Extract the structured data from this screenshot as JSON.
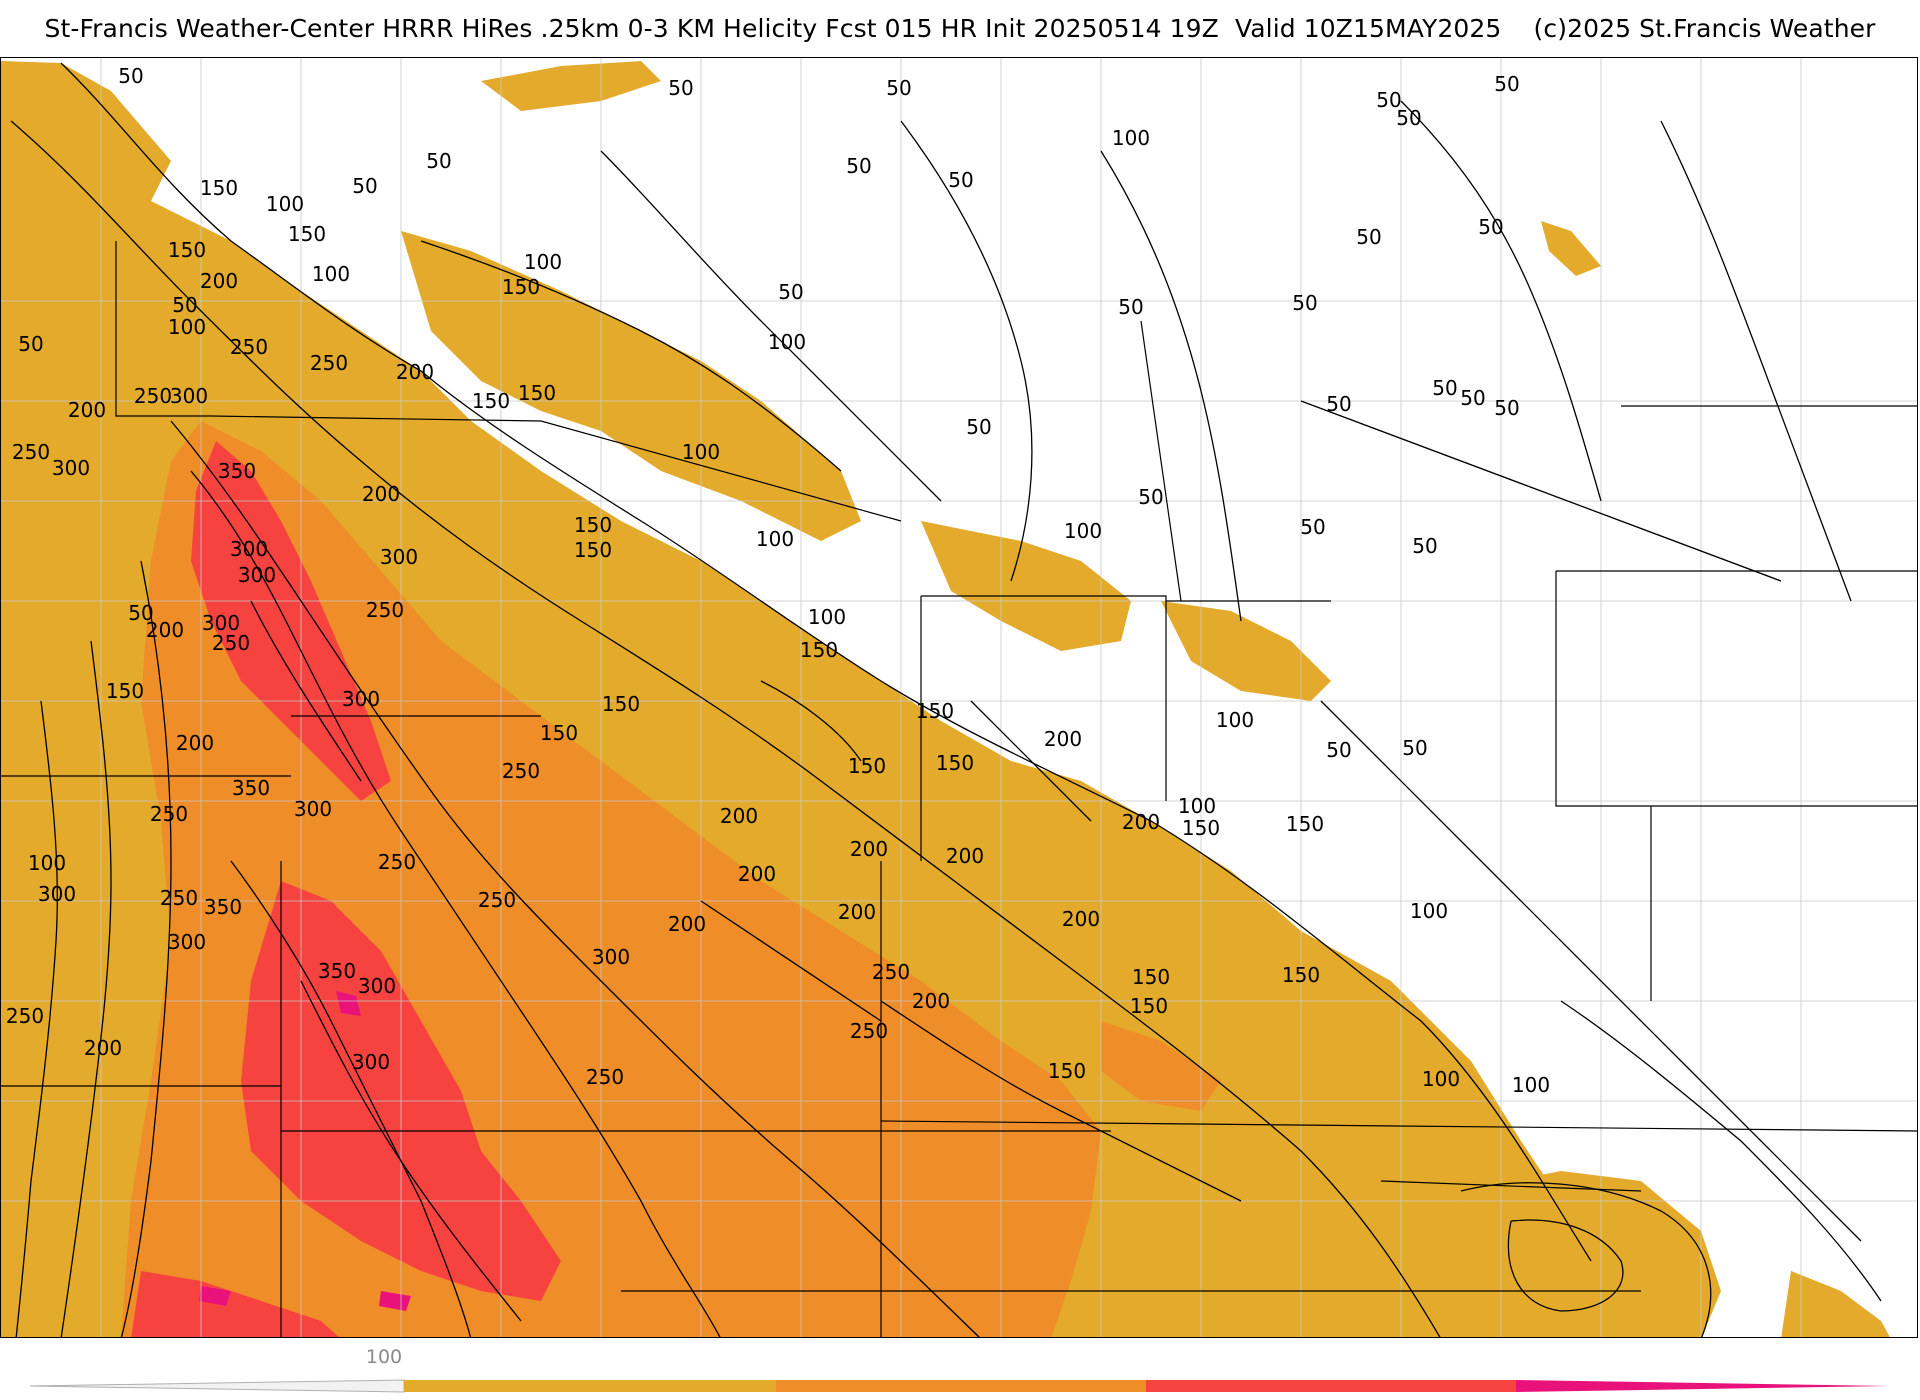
{
  "header": {
    "title": "St-Francis Weather-Center HRRR HiRes .25km 0-3 KM Helicity Fcst 015 HR Init 20250514 19Z  Valid 10Z15MAY2025    (c)2025 St.Francis Weather"
  },
  "colors": {
    "band_100_150": "#e3aa2b",
    "band_150_250": "#ef8d28",
    "band_250_350": "#f64340",
    "band_350_plus": "#e8127a",
    "contour": "#000000",
    "county_line": "#c8c8c8"
  },
  "legend": {
    "tick_label": "100",
    "segments": [
      {
        "color": "#e3aa2b"
      },
      {
        "color": "#ef8d28"
      },
      {
        "color": "#f64340"
      },
      {
        "color": "#e8127a"
      }
    ]
  },
  "contour_labels": [
    {
      "text": "50"
    },
    {
      "text": "50"
    },
    {
      "text": "50"
    },
    {
      "text": "50"
    },
    {
      "text": "50"
    },
    {
      "text": "50"
    },
    {
      "text": "100"
    },
    {
      "text": "50"
    },
    {
      "text": "50"
    },
    {
      "text": "50"
    },
    {
      "text": "150"
    },
    {
      "text": "100"
    },
    {
      "text": "50"
    },
    {
      "text": "150"
    },
    {
      "text": "150"
    },
    {
      "text": "100"
    },
    {
      "text": "100"
    },
    {
      "text": "200"
    },
    {
      "text": "150"
    },
    {
      "text": "50"
    },
    {
      "text": "50"
    },
    {
      "text": "50"
    },
    {
      "text": "50"
    },
    {
      "text": "50"
    },
    {
      "text": "100"
    },
    {
      "text": "50"
    },
    {
      "text": "250"
    },
    {
      "text": "250"
    },
    {
      "text": "200"
    },
    {
      "text": "100"
    },
    {
      "text": "50"
    },
    {
      "text": "200"
    },
    {
      "text": "250"
    },
    {
      "text": "300"
    },
    {
      "text": "150"
    },
    {
      "text": "150"
    },
    {
      "text": "50"
    },
    {
      "text": "50"
    },
    {
      "text": "50"
    },
    {
      "text": "50"
    },
    {
      "text": "50"
    },
    {
      "text": "250"
    },
    {
      "text": "300"
    },
    {
      "text": "350"
    },
    {
      "text": "200"
    },
    {
      "text": "100"
    },
    {
      "text": "50"
    },
    {
      "text": "100"
    },
    {
      "text": "150"
    },
    {
      "text": "150"
    },
    {
      "text": "100"
    },
    {
      "text": "50"
    },
    {
      "text": "50"
    },
    {
      "text": "300"
    },
    {
      "text": "300"
    },
    {
      "text": "300"
    },
    {
      "text": "250"
    },
    {
      "text": "50"
    },
    {
      "text": "200"
    },
    {
      "text": "300"
    },
    {
      "text": "250"
    },
    {
      "text": "100"
    },
    {
      "text": "150"
    },
    {
      "text": "150"
    },
    {
      "text": "300"
    },
    {
      "text": "150"
    },
    {
      "text": "150"
    },
    {
      "text": "200"
    },
    {
      "text": "150"
    },
    {
      "text": "100"
    },
    {
      "text": "200"
    },
    {
      "text": "250"
    },
    {
      "text": "150"
    },
    {
      "text": "150"
    },
    {
      "text": "50"
    },
    {
      "text": "50"
    },
    {
      "text": "350"
    },
    {
      "text": "300"
    },
    {
      "text": "250"
    },
    {
      "text": "200"
    },
    {
      "text": "100"
    },
    {
      "text": "200"
    },
    {
      "text": "150"
    },
    {
      "text": "150"
    },
    {
      "text": "100"
    },
    {
      "text": "250"
    },
    {
      "text": "200"
    },
    {
      "text": "200"
    },
    {
      "text": "300"
    },
    {
      "text": "250"
    },
    {
      "text": "350"
    },
    {
      "text": "250"
    },
    {
      "text": "200"
    },
    {
      "text": "200"
    },
    {
      "text": "200"
    },
    {
      "text": "100"
    },
    {
      "text": "300"
    },
    {
      "text": "200"
    },
    {
      "text": "300"
    },
    {
      "text": "350"
    },
    {
      "text": "250"
    },
    {
      "text": "150"
    },
    {
      "text": "300"
    },
    {
      "text": "150"
    },
    {
      "text": "250"
    },
    {
      "text": "200"
    },
    {
      "text": "250"
    },
    {
      "text": "150"
    },
    {
      "text": "200"
    },
    {
      "text": "300"
    },
    {
      "text": "150"
    },
    {
      "text": "250"
    },
    {
      "text": "100"
    },
    {
      "text": "100"
    }
  ]
}
